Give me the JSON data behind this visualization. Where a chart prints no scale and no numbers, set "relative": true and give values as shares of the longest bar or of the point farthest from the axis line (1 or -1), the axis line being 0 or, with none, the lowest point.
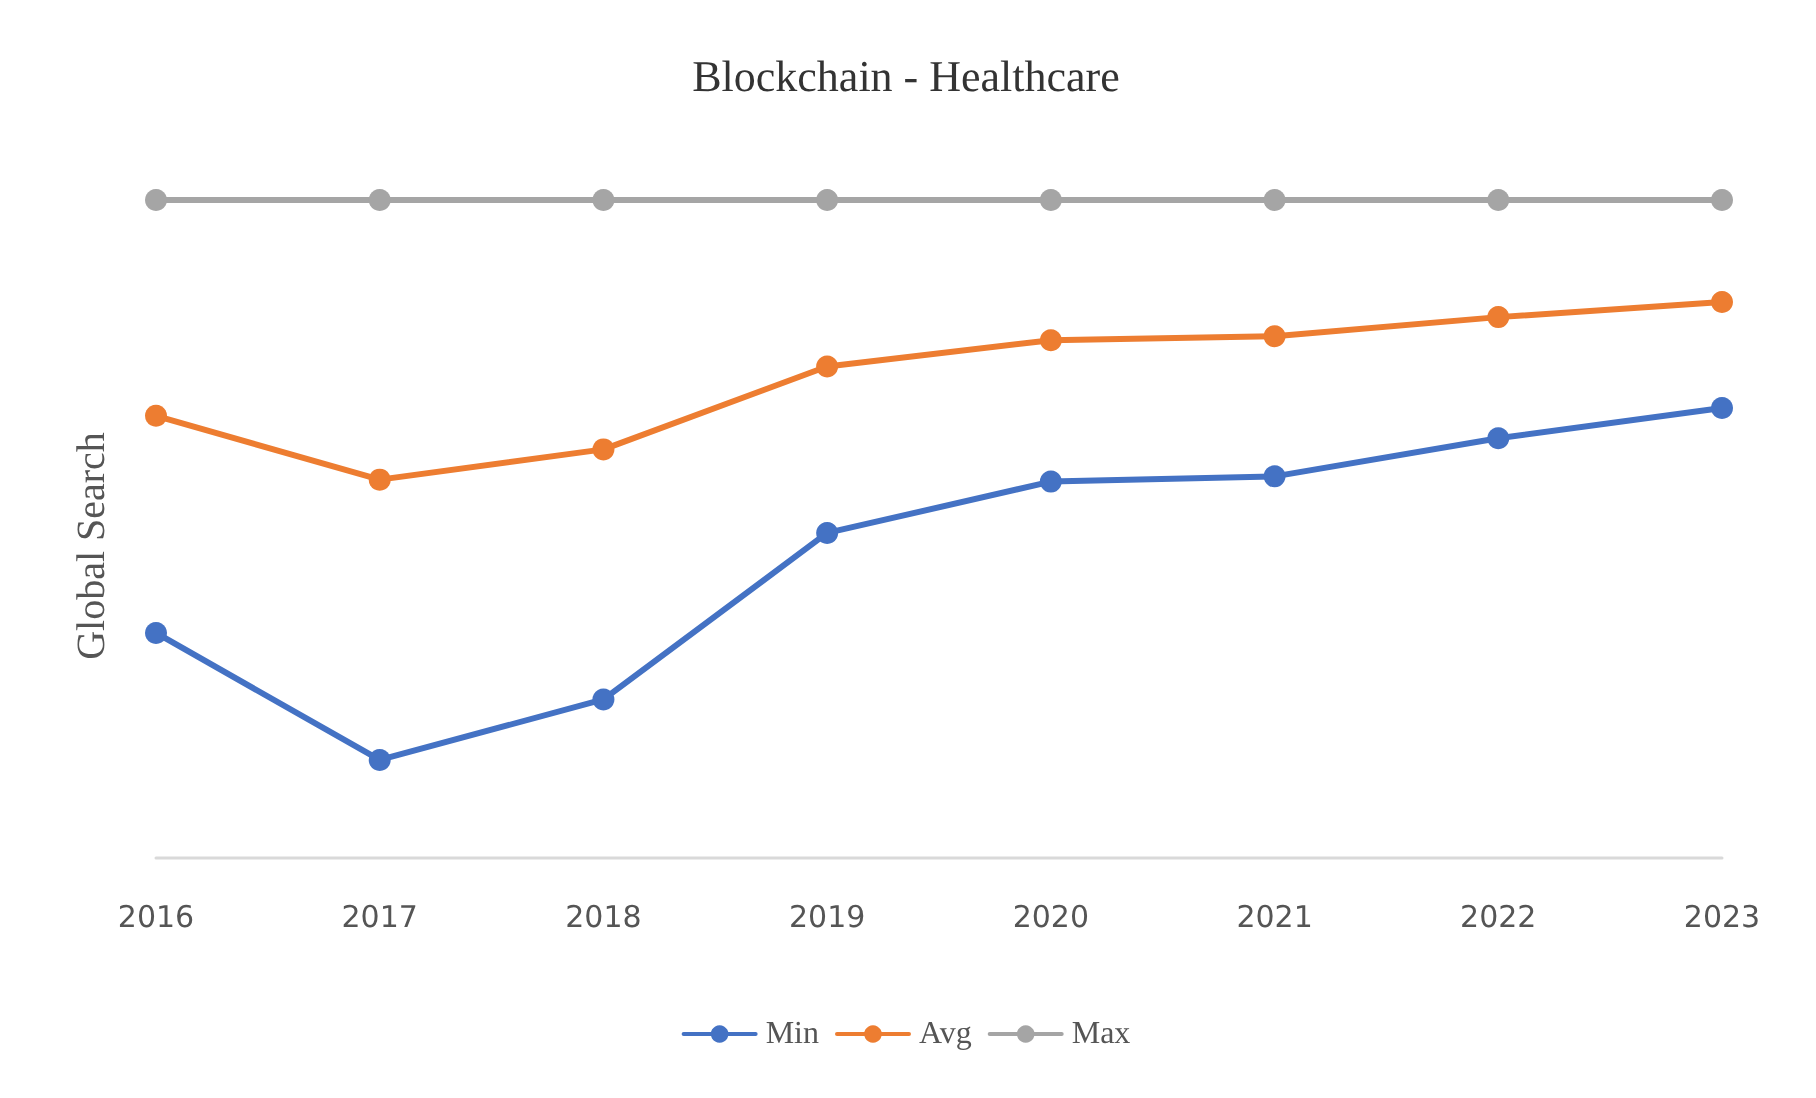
{
  "chart_data": {
    "type": "line",
    "title": "Blockchain - Healthcare",
    "ylabel": "Global Search",
    "relative": true,
    "categories": [
      "2016",
      "2017",
      "2018",
      "2019",
      "2020",
      "2021",
      "2022",
      "2023"
    ],
    "series": [
      {
        "name": "Min",
        "color": "#4472c4",
        "values": [
          0.342,
          0.149,
          0.241,
          0.494,
          0.572,
          0.58,
          0.638,
          0.684
        ]
      },
      {
        "name": "Avg",
        "color": "#ed7d31",
        "values": [
          0.672,
          0.575,
          0.621,
          0.747,
          0.787,
          0.793,
          0.822,
          0.845
        ]
      },
      {
        "name": "Max",
        "color": "#a5a5a5",
        "values": [
          1,
          1,
          1,
          1,
          1,
          1,
          1,
          1
        ]
      }
    ],
    "legend": "bottom",
    "marker": "circle",
    "line_style": "solid",
    "grid": false
  }
}
